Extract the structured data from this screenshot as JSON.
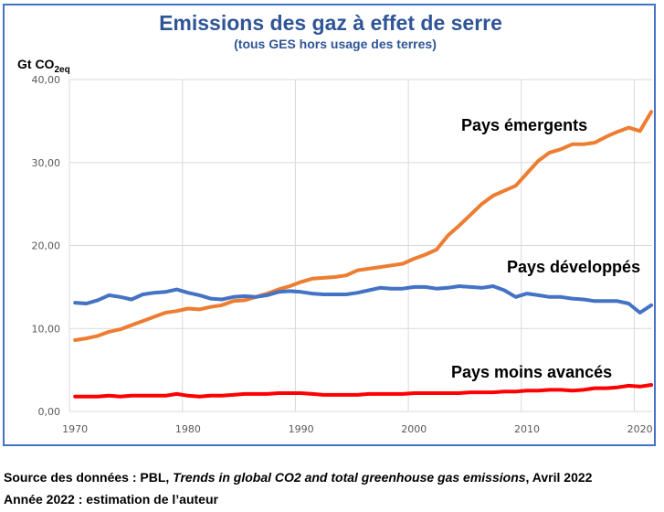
{
  "chart_data": {
    "type": "line",
    "title": "Emissions des gaz à effet de serre",
    "subtitle": "(tous GES hors usage des terres)",
    "ylabel_main": "Gt CO",
    "ylabel_sub": "2eq",
    "xlabel": "",
    "ylim": [
      0,
      40
    ],
    "yticks": [
      0,
      10,
      20,
      30,
      40
    ],
    "ytick_labels": [
      "0,00",
      "10,00",
      "20,00",
      "30,00",
      "40,00"
    ],
    "xticks": [
      1970,
      1980,
      1990,
      2000,
      2010,
      2020
    ],
    "xtick_labels": [
      "1970",
      "1980",
      "1990",
      "2000",
      "2010",
      "2020"
    ],
    "grid": true,
    "legend": "inline labels",
    "x": [
      1970,
      1971,
      1972,
      1973,
      1974,
      1975,
      1976,
      1977,
      1978,
      1979,
      1980,
      1981,
      1982,
      1983,
      1984,
      1985,
      1986,
      1987,
      1988,
      1989,
      1990,
      1991,
      1992,
      1993,
      1994,
      1995,
      1996,
      1997,
      1998,
      1999,
      2000,
      2001,
      2002,
      2003,
      2004,
      2005,
      2006,
      2007,
      2008,
      2009,
      2010,
      2011,
      2012,
      2013,
      2014,
      2015,
      2016,
      2017,
      2018,
      2019,
      2020,
      2021
    ],
    "series": [
      {
        "name": "Pays émergents",
        "color": "#ed7d31",
        "values": [
          8.6,
          8.8,
          9.1,
          9.6,
          9.9,
          10.4,
          10.9,
          11.4,
          11.9,
          12.1,
          12.4,
          12.3,
          12.6,
          12.8,
          13.3,
          13.4,
          13.8,
          14.2,
          14.7,
          15.1,
          15.6,
          16.0,
          16.1,
          16.2,
          16.4,
          17.0,
          17.2,
          17.4,
          17.6,
          17.8,
          18.4,
          18.9,
          19.5,
          21.2,
          22.4,
          23.7,
          25.0,
          26.0,
          26.6,
          27.2,
          28.7,
          30.2,
          31.2,
          31.6,
          32.2,
          32.2,
          32.4,
          33.1,
          33.7,
          34.2,
          33.8,
          36.1
        ]
      },
      {
        "name": "Pays développés",
        "color": "#4472c4",
        "values": [
          13.1,
          13.0,
          13.4,
          14.0,
          13.8,
          13.5,
          14.1,
          14.3,
          14.4,
          14.7,
          14.3,
          14.0,
          13.6,
          13.5,
          13.8,
          13.9,
          13.8,
          14.0,
          14.4,
          14.5,
          14.4,
          14.2,
          14.1,
          14.1,
          14.1,
          14.3,
          14.6,
          14.9,
          14.8,
          14.8,
          15.0,
          15.0,
          14.8,
          14.9,
          15.1,
          15.0,
          14.9,
          15.1,
          14.6,
          13.8,
          14.2,
          14.0,
          13.8,
          13.8,
          13.6,
          13.5,
          13.3,
          13.3,
          13.3,
          13.0,
          11.9,
          12.8
        ]
      },
      {
        "name": "Pays moins avancés",
        "color": "#ff0000",
        "values": [
          1.8,
          1.8,
          1.8,
          1.9,
          1.8,
          1.9,
          1.9,
          1.9,
          1.9,
          2.1,
          1.9,
          1.8,
          1.9,
          1.9,
          2.0,
          2.1,
          2.1,
          2.1,
          2.2,
          2.2,
          2.2,
          2.1,
          2.0,
          2.0,
          2.0,
          2.0,
          2.1,
          2.1,
          2.1,
          2.1,
          2.2,
          2.2,
          2.2,
          2.2,
          2.2,
          2.3,
          2.3,
          2.3,
          2.4,
          2.4,
          2.5,
          2.5,
          2.6,
          2.6,
          2.5,
          2.6,
          2.8,
          2.8,
          2.9,
          3.1,
          3.0,
          3.2
        ]
      }
    ],
    "annotations": [
      "Pays émergents",
      "Pays développés",
      "Pays moins avancés"
    ]
  },
  "colors": {
    "frame": "#4472c4",
    "title": "#2f5597",
    "grid": "#d9d9d9"
  },
  "footer": {
    "line1_prefix": "Source des données : PBL, ",
    "line1_italic": "Trends in global CO2 and total greenhouse gas emissions",
    "line1_suffix": ", Avril 2022",
    "line2": "Année 2022 : estimation de l’auteur"
  }
}
